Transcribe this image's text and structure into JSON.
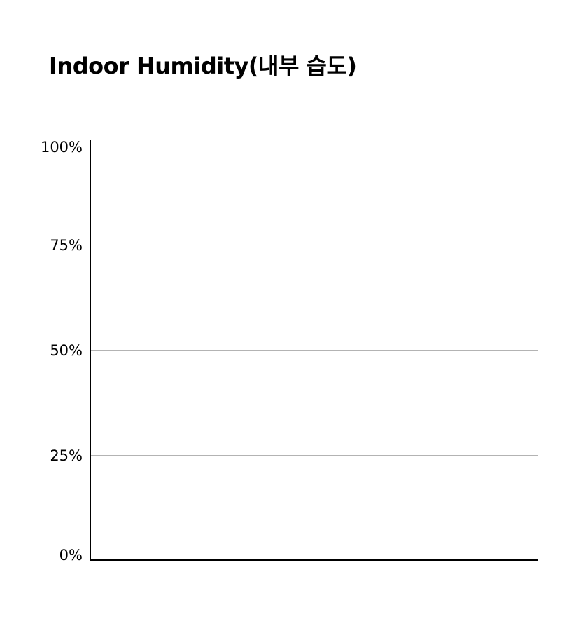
{
  "chart_data": {
    "type": "bar",
    "title": "Indoor Humidity(내부 습도)",
    "xlabel": "",
    "ylabel": "",
    "categories": [],
    "values": [],
    "ylim": [
      0,
      100
    ],
    "y_ticks": [
      {
        "value": 0,
        "label": "0%"
      },
      {
        "value": 25,
        "label": "25%"
      },
      {
        "value": 50,
        "label": "50%"
      },
      {
        "value": 75,
        "label": "75%"
      },
      {
        "value": 100,
        "label": "100%"
      }
    ],
    "grid": true,
    "legend": "none",
    "colors": {
      "gridline": "#b3b3b3",
      "axis": "#000000",
      "text": "#000000"
    }
  }
}
